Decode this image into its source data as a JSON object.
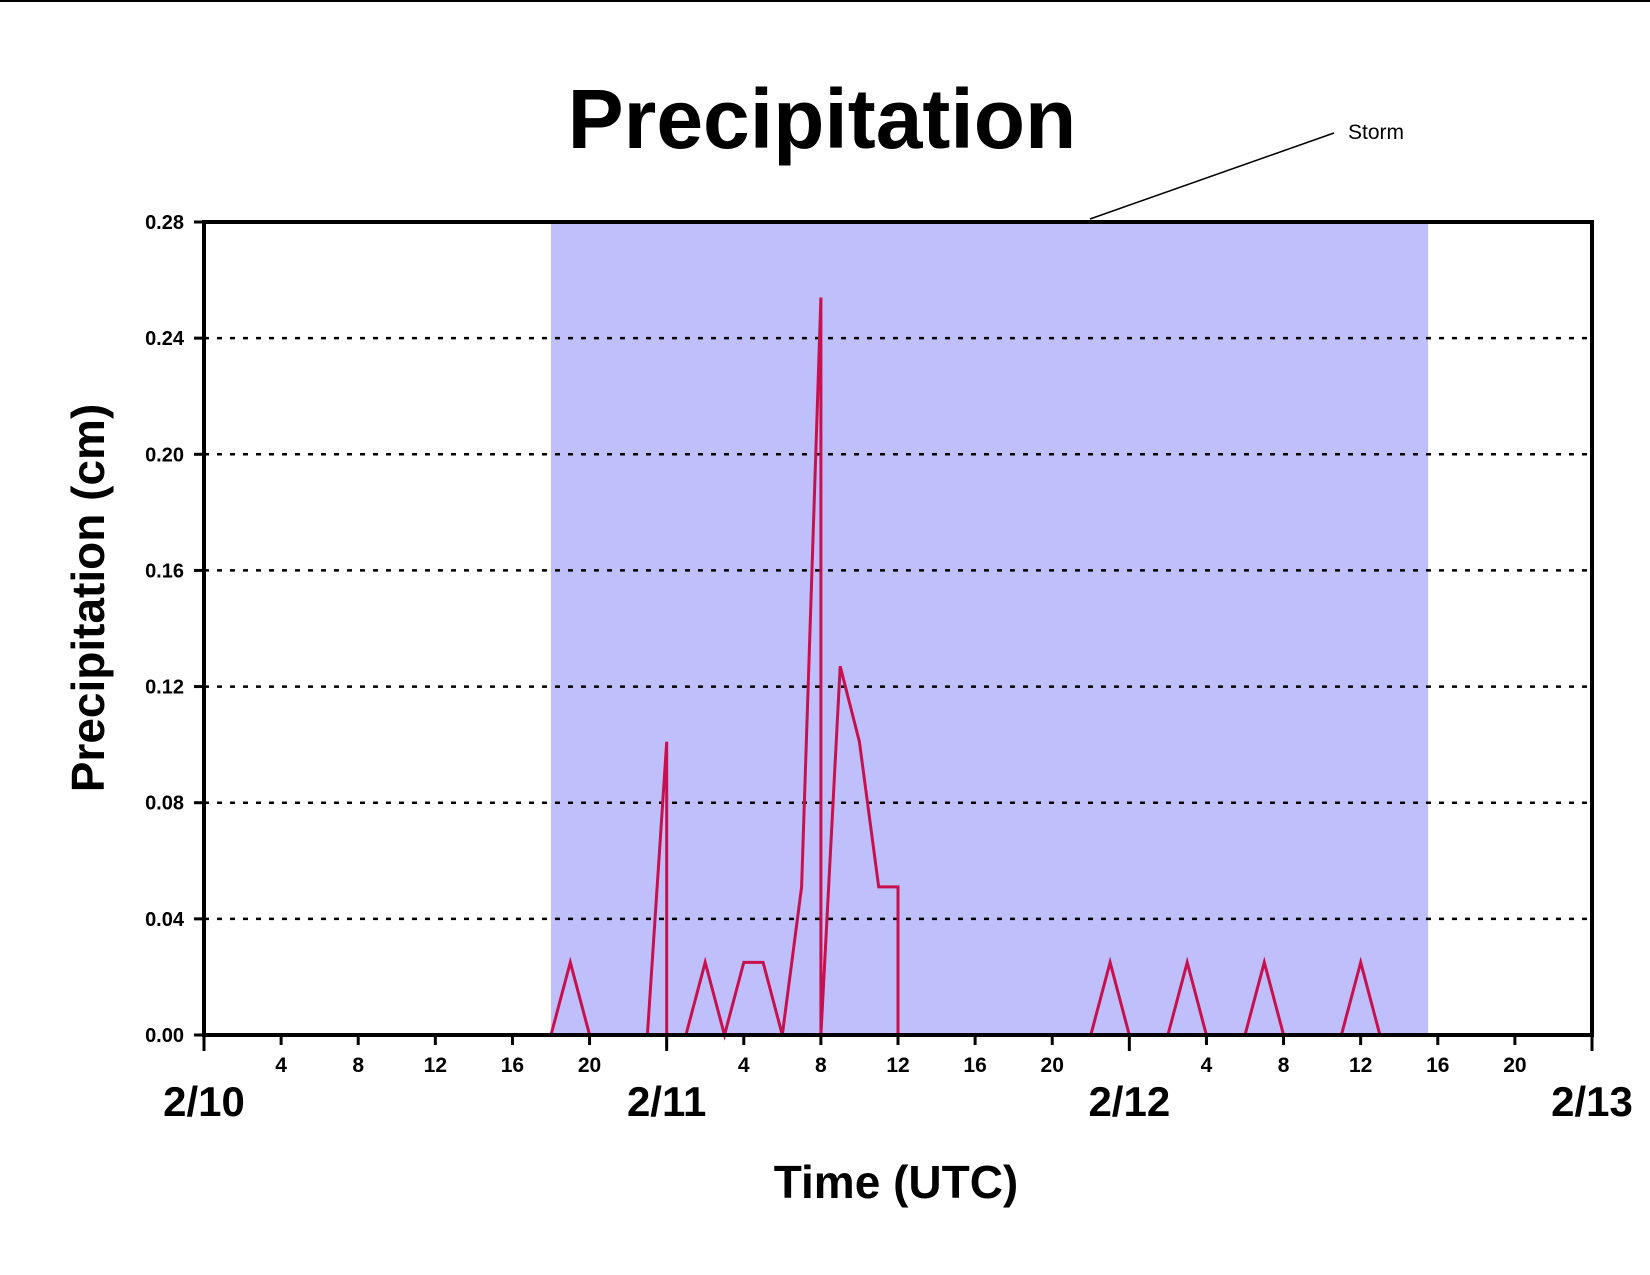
{
  "chart_data": {
    "type": "line",
    "title": "Precipitation",
    "xlabel": "Time (UTC)",
    "ylabel": "Precipitation (cm)",
    "ylim": [
      0,
      0.28
    ],
    "y_ticks": [
      "0.00",
      "0.04",
      "0.08",
      "0.12",
      "0.16",
      "0.20",
      "0.24",
      "0.28"
    ],
    "xlim": [
      "2/10 00:00",
      "2/13 00:00"
    ],
    "x_hour_ticks": [
      {
        "day": 0,
        "hour": 4,
        "label": "4"
      },
      {
        "day": 0,
        "hour": 8,
        "label": "8"
      },
      {
        "day": 0,
        "hour": 12,
        "label": "12"
      },
      {
        "day": 0,
        "hour": 16,
        "label": "16"
      },
      {
        "day": 0,
        "hour": 20,
        "label": "20"
      },
      {
        "day": 1,
        "hour": 4,
        "label": "4"
      },
      {
        "day": 1,
        "hour": 8,
        "label": "8"
      },
      {
        "day": 1,
        "hour": 12,
        "label": "12"
      },
      {
        "day": 1,
        "hour": 16,
        "label": "16"
      },
      {
        "day": 1,
        "hour": 20,
        "label": "20"
      },
      {
        "day": 2,
        "hour": 4,
        "label": "4"
      },
      {
        "day": 2,
        "hour": 8,
        "label": "8"
      },
      {
        "day": 2,
        "hour": 12,
        "label": "12"
      },
      {
        "day": 2,
        "hour": 16,
        "label": "16"
      },
      {
        "day": 2,
        "hour": 20,
        "label": "20"
      }
    ],
    "date_labels": [
      {
        "day": 0,
        "label": "2/10"
      },
      {
        "day": 1,
        "label": "2/11"
      },
      {
        "day": 2,
        "label": "2/12"
      },
      {
        "day": 3,
        "label": "2/13"
      }
    ],
    "grid": "horizontal dotted",
    "shaded_region": {
      "label": "Storm",
      "start": "2/10 18:00",
      "end": "2/12 15:30",
      "color": "#bfbffc"
    },
    "series": [
      {
        "color": "#c8104e",
        "points": [
          [
            "2/10 00:00",
            0
          ],
          [
            "2/10 18:00",
            0
          ],
          [
            "2/10 19:00",
            0.025
          ],
          [
            "2/10 20:00",
            0
          ],
          [
            "2/10 23:00",
            0
          ],
          [
            "2/11 00:00",
            0.101
          ],
          [
            "2/11 00:00",
            0
          ],
          [
            "2/11 01:00",
            0
          ],
          [
            "2/11 02:00",
            0.025
          ],
          [
            "2/11 03:00",
            0
          ],
          [
            "2/11 04:00",
            0.025
          ],
          [
            "2/11 05:00",
            0.025
          ],
          [
            "2/11 06:00",
            0
          ],
          [
            "2/11 07:00",
            0.051
          ],
          [
            "2/11 08:00",
            0.254
          ],
          [
            "2/11 08:00",
            0
          ],
          [
            "2/11 09:00",
            0.127
          ],
          [
            "2/11 10:00",
            0.101
          ],
          [
            "2/11 11:00",
            0.051
          ],
          [
            "2/11 12:00",
            0.051
          ],
          [
            "2/11 12:00",
            0
          ],
          [
            "2/11 22:00",
            0
          ],
          [
            "2/11 23:00",
            0.025
          ],
          [
            "2/12 00:00",
            0
          ],
          [
            "2/12 02:00",
            0
          ],
          [
            "2/12 03:00",
            0.025
          ],
          [
            "2/12 04:00",
            0
          ],
          [
            "2/12 06:00",
            0
          ],
          [
            "2/12 07:00",
            0.025
          ],
          [
            "2/12 08:00",
            0
          ],
          [
            "2/12 11:00",
            0
          ],
          [
            "2/12 12:00",
            0.025
          ],
          [
            "2/12 13:00",
            0
          ],
          [
            "2/13 00:00",
            0
          ]
        ]
      }
    ]
  }
}
